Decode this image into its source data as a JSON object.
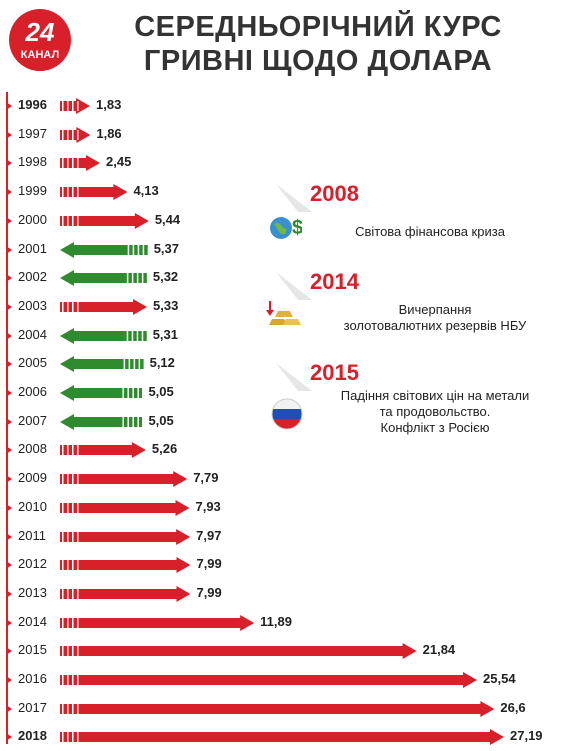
{
  "header": {
    "title_line1": "СЕРЕДНЬОРІЧНИЙ КУРС",
    "title_line2": "ГРИВНІ ЩОДО ДОЛАРА",
    "logo_number": "24",
    "logo_word": "КАНАЛ"
  },
  "colors": {
    "up": "#d8202a",
    "down": "#2e8b2e",
    "accent": "#d8202a"
  },
  "chart_data": {
    "type": "bar",
    "title": "СЕРЕДНЬОРІЧНИЙ КУРС ГРИВНІ ЩОДО ДОЛАРА",
    "categories": [
      "1996",
      "1997",
      "1998",
      "1999",
      "2000",
      "2001",
      "2002",
      "2003",
      "2004",
      "2005",
      "2006",
      "2007",
      "2008",
      "2009",
      "2010",
      "2011",
      "2012",
      "2013",
      "2014",
      "2015",
      "2016",
      "2017",
      "2018"
    ],
    "value_labels": [
      "1,83",
      "1,86",
      "2,45",
      "4,13",
      "5,44",
      "5,37",
      "5,32",
      "5,33",
      "5,31",
      "5,12",
      "5,05",
      "5,05",
      "5,26",
      "7,79",
      "7,93",
      "7,97",
      "7,99",
      "7,99",
      "11,89",
      "21,84",
      "25,54",
      "26,6",
      "27,19"
    ],
    "values": [
      1.83,
      1.86,
      2.45,
      4.13,
      5.44,
      5.37,
      5.32,
      5.33,
      5.31,
      5.12,
      5.05,
      5.05,
      5.26,
      7.79,
      7.93,
      7.97,
      7.99,
      7.99,
      11.89,
      21.84,
      25.54,
      26.6,
      27.19
    ],
    "directions": [
      "up",
      "up",
      "up",
      "up",
      "up",
      "down",
      "down",
      "up",
      "down",
      "down",
      "down",
      "down",
      "up",
      "up",
      "up",
      "up",
      "up",
      "up",
      "up",
      "up",
      "up",
      "up",
      "up"
    ],
    "bold_years": [
      "1996",
      "2018"
    ]
  },
  "events": [
    {
      "year": "2008",
      "text": [
        "Світова фінансова криза"
      ],
      "icon": "globe-dollar-icon"
    },
    {
      "year": "2014",
      "text": [
        "Вичерпання",
        "золотовалютних резервів НБУ"
      ],
      "icon": "gold-bars-icon"
    },
    {
      "year": "2015",
      "text": [
        "Падіння світових цін на метали",
        "та продовольство.",
        "Конфлікт з Росією"
      ],
      "icon": "russia-flag-icon"
    }
  ]
}
